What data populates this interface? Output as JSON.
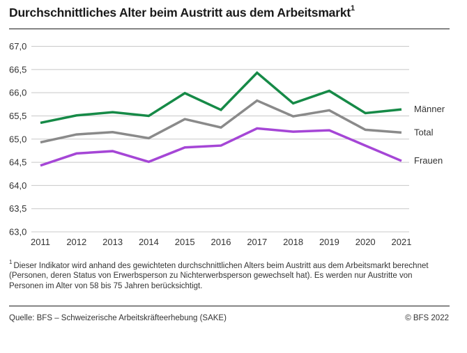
{
  "header": {
    "title": "Durchschnittliches Alter beim Austritt aus dem Arbeitsmarkt",
    "title_sup": "1"
  },
  "footnote": {
    "marker": "1",
    "text": "Dieser Indikator wird anhand des gewichteten durchschnittlichen Alters beim Austritt aus dem Arbeitsmarkt berechnet (Personen, deren Status von Erwerbsperson zu Nichterwerbsperson gewechselt hat). Es werden nur Austritte von Personen im Alter von 58 bis 75 Jahren berücksichtigt."
  },
  "footer": {
    "source": "Quelle: BFS – Schweizerische Arbeitskräfteerhebung (SAKE)",
    "copyright": "© BFS 2022"
  },
  "chart_data": {
    "type": "line",
    "title": "Durchschnittliches Alter beim Austritt aus dem Arbeitsmarkt",
    "xlabel": "",
    "ylabel": "",
    "x": [
      "2011",
      "2012",
      "2013",
      "2014",
      "2015",
      "2016",
      "2017",
      "2018",
      "2019",
      "2020",
      "2021"
    ],
    "ylim": [
      63.0,
      67.0
    ],
    "yticks": [
      63.0,
      63.5,
      64.0,
      64.5,
      65.0,
      65.5,
      66.0,
      66.5,
      67.0
    ],
    "ytick_labels": [
      "63,0",
      "63,5",
      "64,0",
      "64,5",
      "65,0",
      "65,5",
      "66,0",
      "66,5",
      "67,0"
    ],
    "grid": true,
    "legend": "right-end-labels",
    "series": [
      {
        "name": "Männer",
        "color": "#168a47",
        "values": [
          65.35,
          65.51,
          65.58,
          65.5,
          65.99,
          65.63,
          66.43,
          65.77,
          66.04,
          65.56,
          65.64
        ]
      },
      {
        "name": "Total",
        "color": "#8a8a8a",
        "values": [
          64.93,
          65.1,
          65.15,
          65.02,
          65.43,
          65.25,
          65.83,
          65.49,
          65.62,
          65.2,
          65.14
        ]
      },
      {
        "name": "Frauen",
        "color": "#a546d6",
        "values": [
          64.43,
          64.69,
          64.74,
          64.51,
          64.82,
          64.86,
          65.23,
          65.16,
          65.19,
          64.86,
          64.53
        ]
      }
    ]
  }
}
